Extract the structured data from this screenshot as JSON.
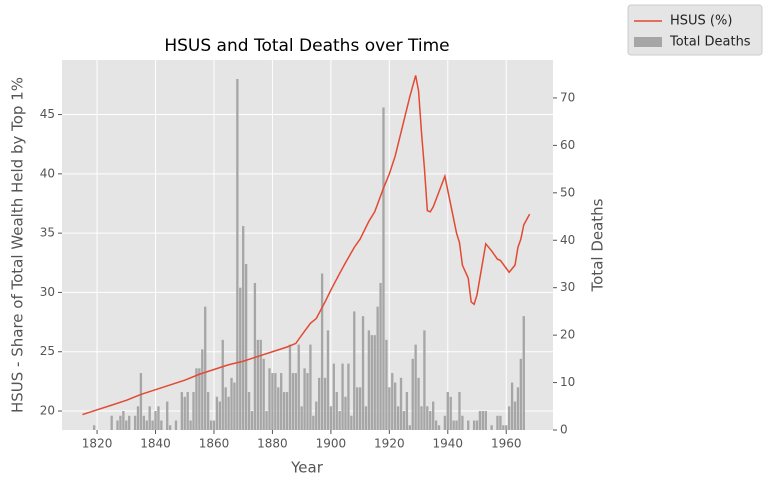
{
  "chart_data": {
    "type": "combo",
    "title": "HSUS and Total Deaths over Time",
    "xlabel": "Year",
    "ylabel": "HSUS - Share of Total Wealth Held by Top 1%",
    "y2label": "Total Deaths",
    "xlim": [
      1808,
      1976
    ],
    "xticks": [
      1820,
      1840,
      1860,
      1880,
      1900,
      1920,
      1940,
      1960
    ],
    "ylim": [
      18.4,
      49.6
    ],
    "yticks": [
      20,
      25,
      30,
      35,
      40,
      45
    ],
    "y2lim": [
      0,
      78
    ],
    "y2ticks": [
      0,
      10,
      20,
      30,
      40,
      50,
      60,
      70
    ],
    "grid": true,
    "legend": "outside upper right",
    "background": "#e5e5e5",
    "series": [
      {
        "name": "HSUS (%)",
        "type": "line",
        "color": "#e24a33",
        "x": [
          1815,
          1820,
          1825,
          1830,
          1835,
          1840,
          1845,
          1850,
          1855,
          1860,
          1865,
          1870,
          1875,
          1880,
          1885,
          1888,
          1890,
          1893,
          1895,
          1898,
          1900,
          1903,
          1905,
          1908,
          1910,
          1913,
          1915,
          1918,
          1920,
          1922,
          1925,
          1927,
          1929,
          1930,
          1931,
          1932,
          1933,
          1934,
          1935,
          1937,
          1939,
          1941,
          1943,
          1944,
          1945,
          1947,
          1948,
          1949,
          1950,
          1953,
          1955,
          1957,
          1958,
          1961,
          1963,
          1964,
          1965,
          1966,
          1968
        ],
        "values": [
          19.7,
          20.1,
          20.5,
          20.9,
          21.4,
          21.8,
          22.2,
          22.6,
          23.1,
          23.5,
          23.9,
          24.2,
          24.6,
          25.0,
          25.4,
          25.7,
          26.4,
          27.4,
          27.8,
          29.2,
          30.2,
          31.6,
          32.5,
          33.8,
          34.5,
          36.0,
          36.8,
          38.8,
          40.0,
          41.5,
          44.5,
          46.5,
          48.3,
          47.0,
          43.5,
          40.5,
          36.9,
          36.8,
          37.2,
          38.5,
          39.8,
          37.4,
          35.0,
          34.2,
          32.3,
          31.2,
          29.2,
          29.0,
          29.8,
          34.1,
          33.5,
          32.8,
          32.7,
          31.7,
          32.3,
          33.8,
          34.5,
          35.7,
          36.6
        ]
      },
      {
        "name": "Total Deaths",
        "type": "bar",
        "color": "#a6a6a6",
        "axis": "y2",
        "x": [
          1819,
          1825,
          1827,
          1828,
          1829,
          1830,
          1831,
          1833,
          1834,
          1835,
          1836,
          1837,
          1838,
          1839,
          1840,
          1841,
          1842,
          1844,
          1845,
          1847,
          1849,
          1850,
          1851,
          1852,
          1853,
          1854,
          1855,
          1856,
          1857,
          1858,
          1859,
          1860,
          1861,
          1862,
          1863,
          1864,
          1865,
          1866,
          1867,
          1868,
          1869,
          1870,
          1871,
          1872,
          1873,
          1874,
          1875,
          1876,
          1877,
          1878,
          1879,
          1880,
          1881,
          1882,
          1883,
          1884,
          1885,
          1886,
          1887,
          1888,
          1889,
          1890,
          1891,
          1892,
          1893,
          1894,
          1895,
          1896,
          1897,
          1898,
          1899,
          1900,
          1901,
          1902,
          1903,
          1904,
          1905,
          1906,
          1907,
          1908,
          1909,
          1910,
          1911,
          1912,
          1913,
          1914,
          1915,
          1916,
          1917,
          1918,
          1919,
          1920,
          1921,
          1922,
          1923,
          1924,
          1925,
          1926,
          1927,
          1928,
          1929,
          1930,
          1931,
          1932,
          1933,
          1934,
          1935,
          1936,
          1937,
          1939,
          1940,
          1941,
          1942,
          1943,
          1944,
          1945,
          1947,
          1949,
          1950,
          1951,
          1952,
          1953,
          1955,
          1957,
          1958,
          1959,
          1960,
          1961,
          1962,
          1963,
          1964,
          1965,
          1966
        ],
        "values": [
          1,
          3,
          2,
          3,
          4,
          2,
          3,
          3,
          5,
          12,
          3,
          2,
          5,
          2,
          4,
          5,
          2,
          6,
          1,
          2,
          8,
          7,
          8,
          2,
          8,
          13,
          13,
          17,
          26,
          8,
          2,
          2,
          7,
          6,
          19,
          9,
          7,
          11,
          10,
          74,
          30,
          43,
          35,
          8,
          4,
          31,
          19,
          19,
          15,
          4,
          13,
          12,
          12,
          9,
          12,
          8,
          8,
          18,
          12,
          12,
          18,
          5,
          13,
          12,
          18,
          3,
          6,
          11,
          33,
          11,
          21,
          5,
          14,
          8,
          4,
          14,
          7,
          14,
          3,
          25,
          9,
          9,
          24,
          5,
          21,
          20,
          20,
          26,
          31,
          68,
          19,
          9,
          12,
          10,
          5,
          11,
          4,
          8,
          1,
          15,
          18,
          11,
          5,
          21,
          5,
          4,
          6,
          2,
          1,
          3,
          8,
          7,
          2,
          2,
          8,
          3,
          2,
          2,
          2,
          4,
          4,
          4,
          1,
          3,
          3,
          1,
          1,
          5,
          10,
          6,
          9,
          15,
          24
        ]
      }
    ]
  }
}
